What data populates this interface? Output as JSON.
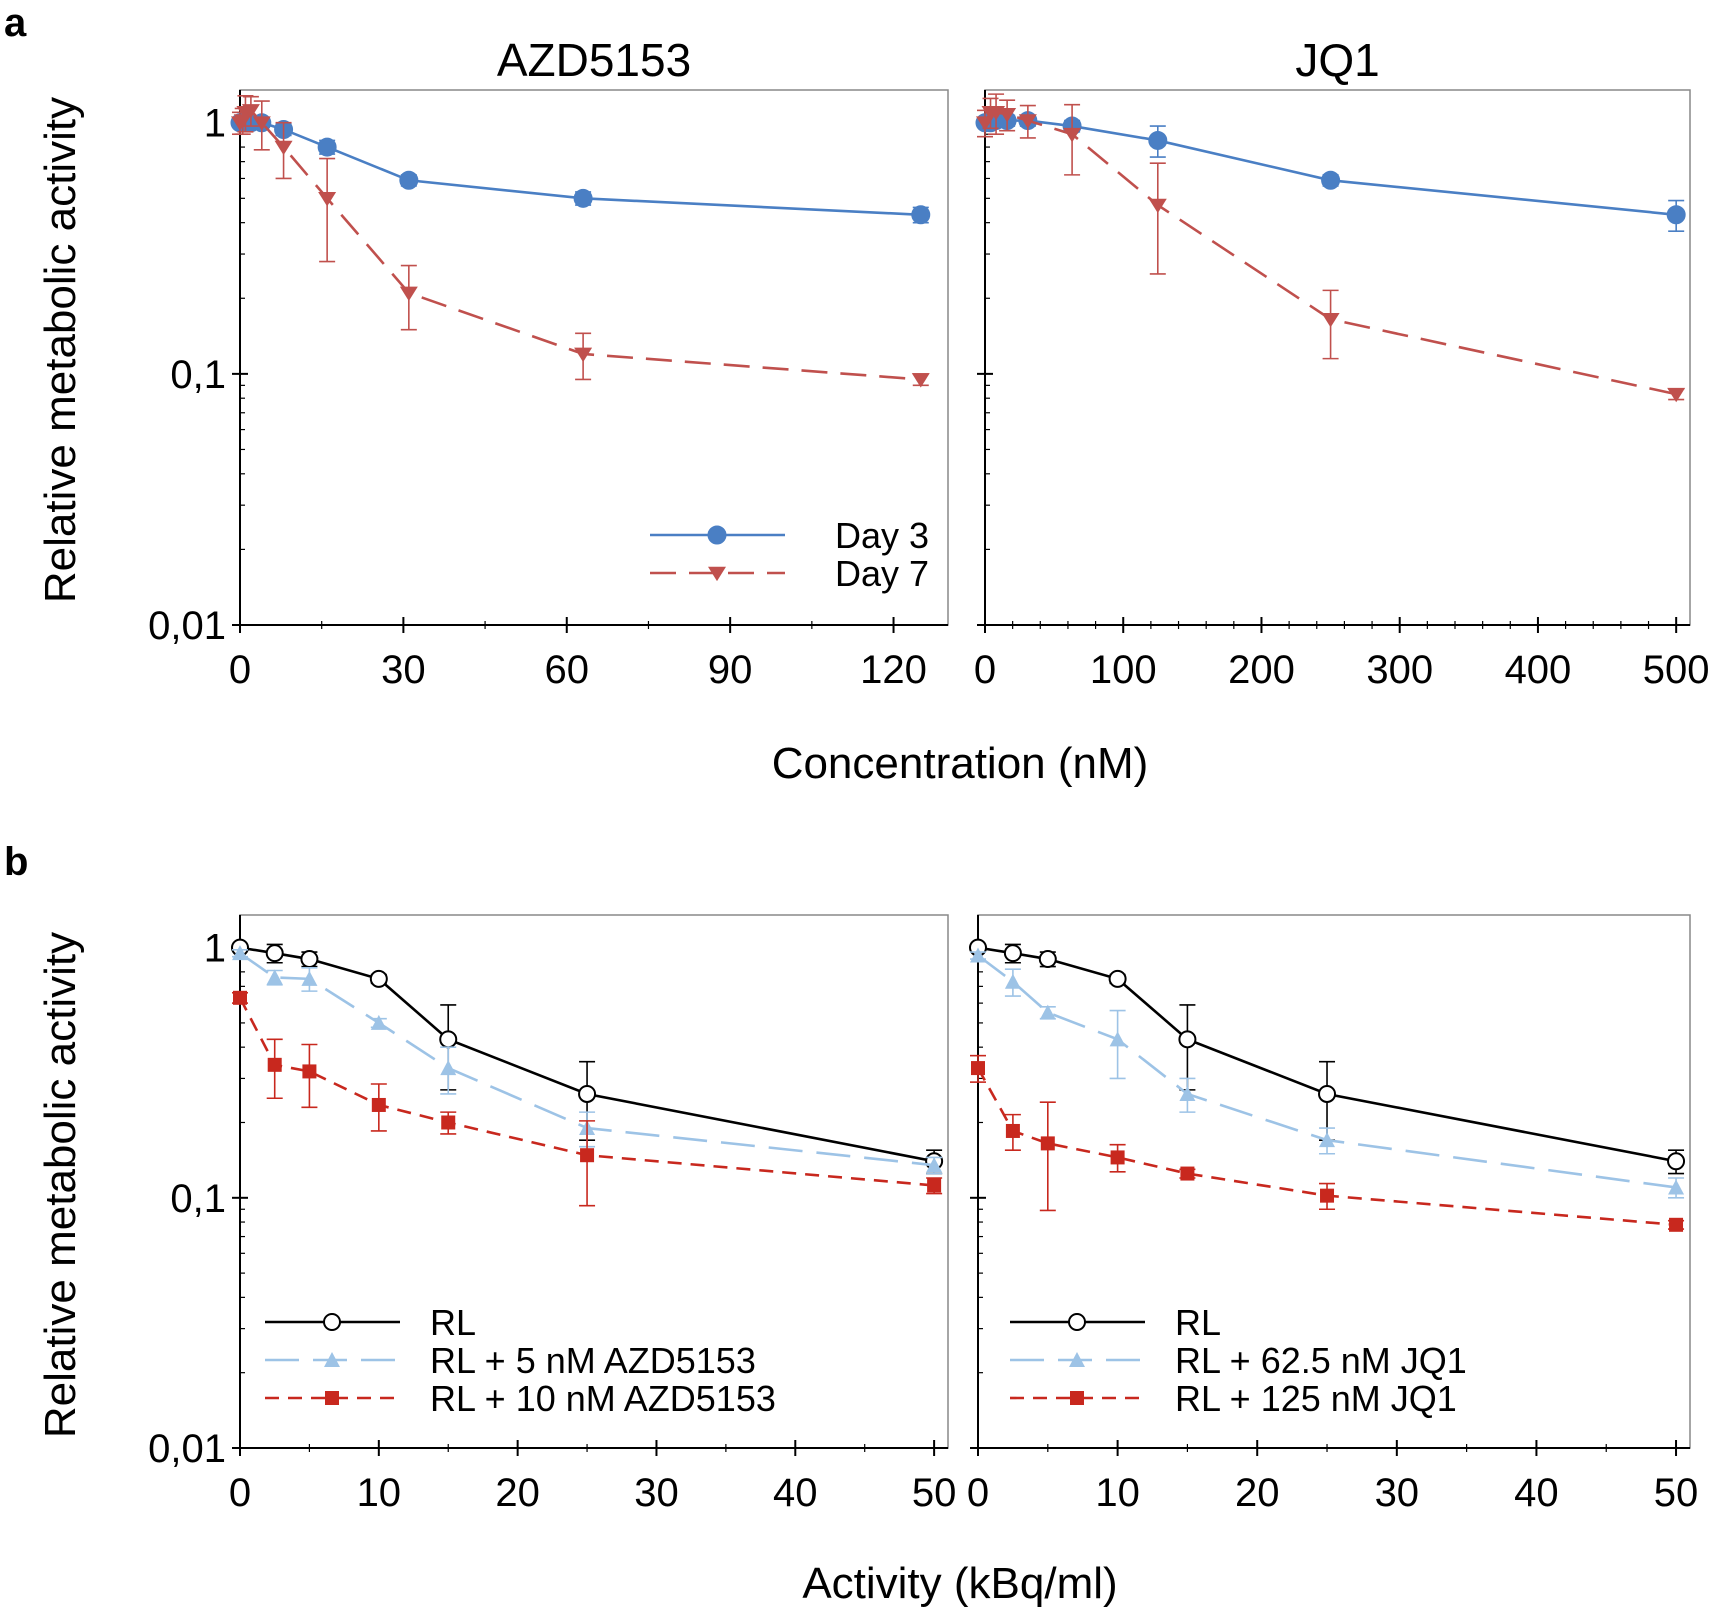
{
  "figure": {
    "panel_a_label": "a",
    "panel_b_label": "b",
    "panel_a_xlabel": "Concentration (nM)",
    "panel_b_xlabel": "Activity (kBq/ml)",
    "ylabel": "Relative metabolic activity",
    "y_ticks": [
      1,
      0.1,
      0.01
    ],
    "y_tick_labels": [
      "1",
      "0,1",
      "0,01"
    ]
  },
  "colors": {
    "blue": "#4a7fc4",
    "red": "#c0504d",
    "lightblue": "#9dc3e6",
    "darkred": "#c8281e",
    "black": "#000000"
  },
  "chart_data": [
    {
      "id": "a-azd",
      "type": "line",
      "title": "AZD5153",
      "xlabel": "Concentration (nM)",
      "ylabel": "Relative metabolic activity",
      "yscale": "log",
      "xlim": [
        0,
        130
      ],
      "ylim": [
        0.01,
        1.5
      ],
      "x_ticks": [
        0,
        30,
        60,
        90,
        120
      ],
      "legend_position": "bottom-right",
      "series": [
        {
          "name": "Day 3",
          "color": "blue",
          "style": "solid",
          "marker": "circle",
          "x": [
            0,
            0.5,
            1,
            2,
            4,
            8,
            16,
            31,
            63,
            125
          ],
          "y": [
            1.0,
            1.0,
            1.0,
            1.0,
            1.0,
            0.94,
            0.8,
            0.59,
            0.5,
            0.43
          ],
          "err": [
            0.03,
            0.03,
            0.03,
            0.03,
            0.04,
            0.05,
            0.05,
            0.03,
            0.03,
            0.03
          ]
        },
        {
          "name": "Day 7",
          "color": "red",
          "style": "dashed",
          "marker": "tri-down",
          "x": [
            0,
            0.5,
            1,
            2,
            4,
            8,
            16,
            31,
            63,
            125
          ],
          "y": [
            1.0,
            1.02,
            1.1,
            1.12,
            1.0,
            0.8,
            0.5,
            0.21,
            0.12,
            0.095
          ],
          "err": [
            0.1,
            0.12,
            0.18,
            0.15,
            0.22,
            0.2,
            0.22,
            0.06,
            0.025,
            0.005
          ]
        }
      ]
    },
    {
      "id": "a-jq1",
      "type": "line",
      "title": "JQ1",
      "xlabel": "Concentration (nM)",
      "yscale": "log",
      "xlim": [
        0,
        510
      ],
      "ylim": [
        0.01,
        1.5
      ],
      "x_ticks": [
        0,
        100,
        200,
        300,
        400,
        500
      ],
      "series": [
        {
          "name": "Day 3",
          "color": "blue",
          "style": "solid",
          "marker": "circle",
          "x": [
            0,
            4,
            8,
            16,
            31,
            63,
            125,
            250,
            500
          ],
          "y": [
            1.0,
            1.0,
            1.02,
            1.02,
            1.02,
            0.97,
            0.85,
            0.59,
            0.43
          ],
          "err": [
            0.03,
            0.05,
            0.05,
            0.05,
            0.05,
            0.05,
            0.12,
            0.03,
            0.06
          ]
        },
        {
          "name": "Day 7",
          "color": "red",
          "style": "dashed",
          "marker": "tri-down",
          "x": [
            0,
            4,
            8,
            16,
            31,
            63,
            125,
            250,
            500
          ],
          "y": [
            1.0,
            1.1,
            1.1,
            1.08,
            1.02,
            0.9,
            0.47,
            0.165,
            0.083
          ],
          "err": [
            0.12,
            0.15,
            0.2,
            0.15,
            0.15,
            0.28,
            0.22,
            0.05,
            0.004
          ]
        }
      ]
    },
    {
      "id": "b-azd",
      "type": "line",
      "xlabel": "Activity (kBq/ml)",
      "ylabel": "Relative metabolic activity",
      "yscale": "log",
      "xlim": [
        0,
        51
      ],
      "ylim": [
        0.01,
        1.5
      ],
      "x_ticks": [
        0,
        10,
        20,
        30,
        40,
        50
      ],
      "legend_position": "bottom-left",
      "series": [
        {
          "name": "RL",
          "color": "black",
          "style": "solid",
          "marker": "open-circle",
          "x": [
            0,
            2.5,
            5,
            10,
            15,
            25,
            50
          ],
          "y": [
            1.0,
            0.95,
            0.9,
            0.75,
            0.43,
            0.26,
            0.14
          ],
          "err": [
            0.03,
            0.08,
            0.06,
            0.03,
            0.16,
            0.09,
            0.015
          ]
        },
        {
          "name": "RL + 5 nM AZD5153",
          "color": "lightblue",
          "style": "longdash",
          "marker": "triangle",
          "x": [
            0,
            2.5,
            5,
            10,
            15,
            25,
            50
          ],
          "y": [
            0.95,
            0.76,
            0.75,
            0.5,
            0.33,
            0.19,
            0.135
          ],
          "err": [
            0.03,
            0.05,
            0.08,
            0.02,
            0.07,
            0.03,
            0.01
          ]
        },
        {
          "name": "RL + 10 nM AZD5153",
          "color": "darkred",
          "style": "shortdash",
          "marker": "square",
          "x": [
            0,
            2.5,
            5,
            10,
            15,
            25,
            50
          ],
          "y": [
            0.63,
            0.34,
            0.32,
            0.235,
            0.2,
            0.148,
            0.112
          ],
          "err": [
            0.03,
            0.09,
            0.09,
            0.05,
            0.02,
            0.055,
            0.008
          ]
        }
      ]
    },
    {
      "id": "b-jq1",
      "type": "line",
      "xlabel": "Activity (kBq/ml)",
      "yscale": "log",
      "xlim": [
        0,
        51
      ],
      "ylim": [
        0.01,
        1.5
      ],
      "x_ticks": [
        0,
        10,
        20,
        30,
        40,
        50
      ],
      "legend_position": "bottom-left",
      "series": [
        {
          "name": "RL",
          "color": "black",
          "style": "solid",
          "marker": "open-circle",
          "x": [
            0,
            2.5,
            5,
            10,
            15,
            25,
            50
          ],
          "y": [
            1.0,
            0.95,
            0.9,
            0.75,
            0.43,
            0.26,
            0.14
          ],
          "err": [
            0.03,
            0.08,
            0.06,
            0.03,
            0.16,
            0.09,
            0.015
          ]
        },
        {
          "name": "RL + 62.5 nM JQ1",
          "color": "lightblue",
          "style": "longdash",
          "marker": "triangle",
          "x": [
            0,
            2.5,
            5,
            10,
            15,
            25,
            50
          ],
          "y": [
            0.93,
            0.73,
            0.55,
            0.43,
            0.26,
            0.17,
            0.11
          ],
          "err": [
            0.03,
            0.09,
            0.03,
            0.13,
            0.04,
            0.02,
            0.01
          ]
        },
        {
          "name": "RL + 125 nM JQ1",
          "color": "darkred",
          "style": "shortdash",
          "marker": "square",
          "x": [
            0,
            2.5,
            5,
            10,
            15,
            25,
            50
          ],
          "y": [
            0.33,
            0.185,
            0.165,
            0.145,
            0.125,
            0.102,
            0.078
          ],
          "err": [
            0.04,
            0.03,
            0.076,
            0.018,
            0.005,
            0.012,
            0.003
          ]
        }
      ]
    }
  ]
}
